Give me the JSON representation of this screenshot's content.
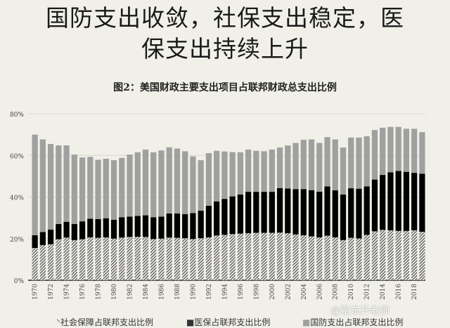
{
  "headline": {
    "line1": "国防支出收敛，社保支出稳定，医",
    "line2": "保支出持续上升"
  },
  "watermark": "@翟东升老师",
  "chart_data": {
    "type": "bar",
    "stacked": true,
    "title": "图2：美国财政主要支出项目占联邦财政总支出比例",
    "xlabel": "",
    "ylabel": "",
    "ylim": [
      0,
      80
    ],
    "yticks": [
      "0%",
      "20%",
      "40%",
      "60%",
      "80%"
    ],
    "grid": true,
    "legend_position": "bottom",
    "categories": [
      1970,
      1971,
      1972,
      1973,
      1974,
      1975,
      1976,
      1977,
      1978,
      1979,
      1980,
      1981,
      1982,
      1983,
      1984,
      1985,
      1986,
      1987,
      1988,
      1989,
      1990,
      1991,
      1992,
      1993,
      1994,
      1995,
      1996,
      1997,
      1998,
      1999,
      2000,
      2001,
      2002,
      2003,
      2004,
      2005,
      2006,
      2007,
      2008,
      2009,
      2010,
      2011,
      2012,
      2013,
      2014,
      2015,
      2016,
      2017,
      2018,
      2019
    ],
    "xtick_labels": [
      "1970",
      "1972",
      "1974",
      "1976",
      "1978",
      "1980",
      "1982",
      "1984",
      "1986",
      "1988",
      "1990",
      "1992",
      "1994",
      "1996",
      "1998",
      "2000",
      "2002",
      "2004",
      "2006",
      "2008",
      "2010",
      "2012",
      "2014",
      "2016",
      "2018"
    ],
    "series": [
      {
        "name": "社会保障占联邦支出比例",
        "color": "#555555",
        "pattern": "hatch",
        "values": [
          15.5,
          16.9,
          17.3,
          19.7,
          20.5,
          19.3,
          19.7,
          20.6,
          20.4,
          20.6,
          20.0,
          20.5,
          20.8,
          20.9,
          20.8,
          19.8,
          20.0,
          20.5,
          20.4,
          20.2,
          19.8,
          20.2,
          20.6,
          21.5,
          21.8,
          22.2,
          22.4,
          22.6,
          22.8,
          22.8,
          22.8,
          22.9,
          22.6,
          22.0,
          21.6,
          21.1,
          20.6,
          21.4,
          20.6,
          19.3,
          20.4,
          20.1,
          21.8,
          23.5,
          24.2,
          24.0,
          23.7,
          23.7,
          24.0,
          23.3
        ]
      },
      {
        "name": "医保占联邦支出比例",
        "color": "#000000",
        "values": [
          6.1,
          6.3,
          7.0,
          7.3,
          7.6,
          7.7,
          8.6,
          9.0,
          9.0,
          9.2,
          9.1,
          9.8,
          9.8,
          10.0,
          10.4,
          10.5,
          10.6,
          11.6,
          11.7,
          11.6,
          12.5,
          13.2,
          15.2,
          16.4,
          17.3,
          18.1,
          18.8,
          19.9,
          19.7,
          19.7,
          19.7,
          21.4,
          21.5,
          21.8,
          22.2,
          22.2,
          22.0,
          23.7,
          22.6,
          21.9,
          23.8,
          23.9,
          23.3,
          24.9,
          26.4,
          27.9,
          28.8,
          28.4,
          27.6,
          27.9
        ]
      },
      {
        "name": "国防支出占联邦支出比例",
        "color": "#a0a0a0",
        "values": [
          48.4,
          44.5,
          41.2,
          37.8,
          36.7,
          33.4,
          30.7,
          29.7,
          28.5,
          28.6,
          28.6,
          28.5,
          29.8,
          30.6,
          31.6,
          31.2,
          31.8,
          31.8,
          31.2,
          30.2,
          27.2,
          24.3,
          25.3,
          24.3,
          22.8,
          21.3,
          20.3,
          20.3,
          19.7,
          19.5,
          20.3,
          19.5,
          20.7,
          22.2,
          23.7,
          24.4,
          23.4,
          23.7,
          24.5,
          22.6,
          24.4,
          24.6,
          24.1,
          23.8,
          22.7,
          21.8,
          21.2,
          20.7,
          21.2,
          20.0
        ]
      }
    ]
  }
}
